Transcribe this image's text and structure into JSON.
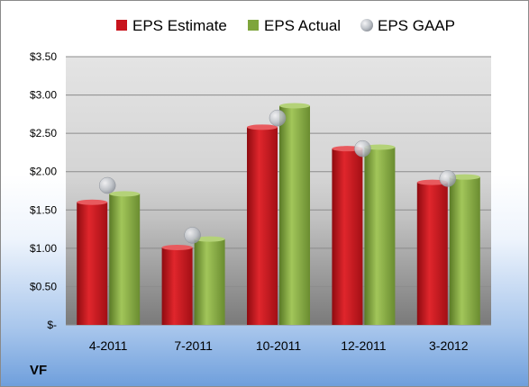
{
  "ticker": "VF",
  "colors": {
    "estimate": "#c8141c",
    "actual": "#7ea53c",
    "gaap": "#b8bcc4"
  },
  "chart_data": {
    "type": "bar",
    "categories": [
      "4-2011",
      "7-2011",
      "10-2011",
      "12-2011",
      "3-2012"
    ],
    "series": [
      {
        "name": "EPS Estimate",
        "values": [
          1.6,
          1.01,
          2.58,
          2.3,
          1.86
        ]
      },
      {
        "name": "EPS Actual",
        "values": [
          1.71,
          1.12,
          2.86,
          2.32,
          1.93
        ]
      },
      {
        "name": "EPS GAAP",
        "values": [
          1.82,
          1.17,
          2.7,
          2.3,
          1.91
        ]
      }
    ],
    "y_ticks": [
      "$-",
      "$0.50",
      "$1.00",
      "$1.50",
      "$2.00",
      "$2.50",
      "$3.00",
      "$3.50"
    ],
    "ylim": [
      0,
      3.5
    ],
    "grid": true,
    "legend_position": "top"
  }
}
